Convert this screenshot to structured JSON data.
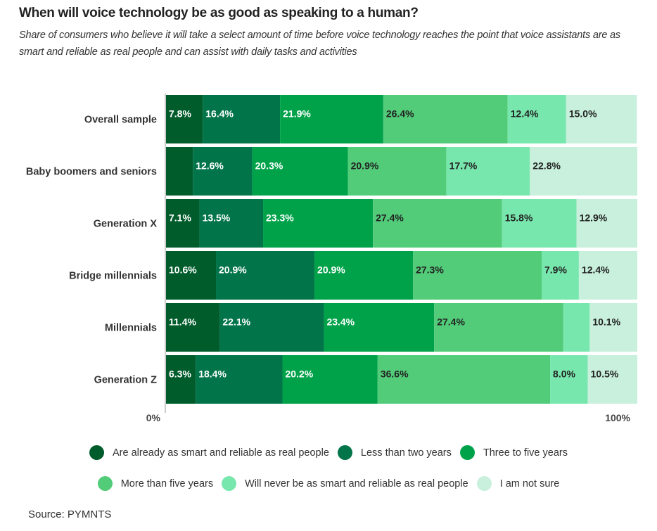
{
  "header": {
    "title": "When will voice technology be as good as speaking to a human?",
    "subtitle": "Share of consumers who believe it will take a select amount of time before voice technology reaches the point that voice assistants are as smart and reliable as real people and can assist with daily tasks and activities"
  },
  "source": "Source: PYMNTS",
  "chart_data": {
    "type": "bar",
    "orientation": "horizontal",
    "stacked": true,
    "title": "When will voice technology be as good as speaking to a human?",
    "xlabel": "",
    "ylabel": "",
    "xlim": [
      0,
      100
    ],
    "x_tick_labels": [
      "0%",
      "100%"
    ],
    "legend_position": "bottom",
    "categories": [
      "Overall sample",
      "Baby boomers and seniors",
      "Generation X",
      "Bridge millennials",
      "Millennials",
      "Generation Z"
    ],
    "series": [
      {
        "name": "Are already as smart and reliable as real people",
        "color": "#005c2b",
        "label_color": "#ffffff",
        "values": [
          7.8,
          5.7,
          7.1,
          10.6,
          11.4,
          6.3
        ],
        "labels": [
          "7.8%",
          "",
          "7.1%",
          "10.6%",
          "11.4%",
          "6.3%"
        ]
      },
      {
        "name": "Less than two years",
        "color": "#02744a",
        "label_color": "#ffffff",
        "values": [
          16.4,
          12.6,
          13.5,
          20.9,
          22.1,
          18.4
        ],
        "labels": [
          "16.4%",
          "12.6%",
          "13.5%",
          "20.9%",
          "22.1%",
          "18.4%"
        ]
      },
      {
        "name": "Three to five years",
        "color": "#00a249",
        "label_color": "#ffffff",
        "values": [
          21.9,
          20.3,
          23.3,
          20.9,
          23.4,
          20.2
        ],
        "labels": [
          "21.9%",
          "20.3%",
          "23.3%",
          "20.9%",
          "23.4%",
          "20.2%"
        ]
      },
      {
        "name": "More than five years",
        "color": "#52cc79",
        "label_color": "#222222",
        "values": [
          26.4,
          20.9,
          27.4,
          27.3,
          27.4,
          36.6
        ],
        "labels": [
          "26.4%",
          "20.9%",
          "27.4%",
          "27.3%",
          "27.4%",
          "36.6%"
        ]
      },
      {
        "name": "Will never be as smart and reliable as real people",
        "color": "#78e7ae",
        "label_color": "#222222",
        "values": [
          12.4,
          17.7,
          15.8,
          7.9,
          5.6,
          8.0
        ],
        "labels": [
          "12.4%",
          "17.7%",
          "15.8%",
          "7.9%",
          "",
          "8.0%"
        ]
      },
      {
        "name": "I am not sure",
        "color": "#c8f0dc",
        "label_color": "#222222",
        "values": [
          15.0,
          22.8,
          12.9,
          12.4,
          10.1,
          10.5
        ],
        "labels": [
          "15.0%",
          "22.8%",
          "12.9%",
          "12.4%",
          "10.1%",
          "10.5%"
        ]
      }
    ]
  }
}
